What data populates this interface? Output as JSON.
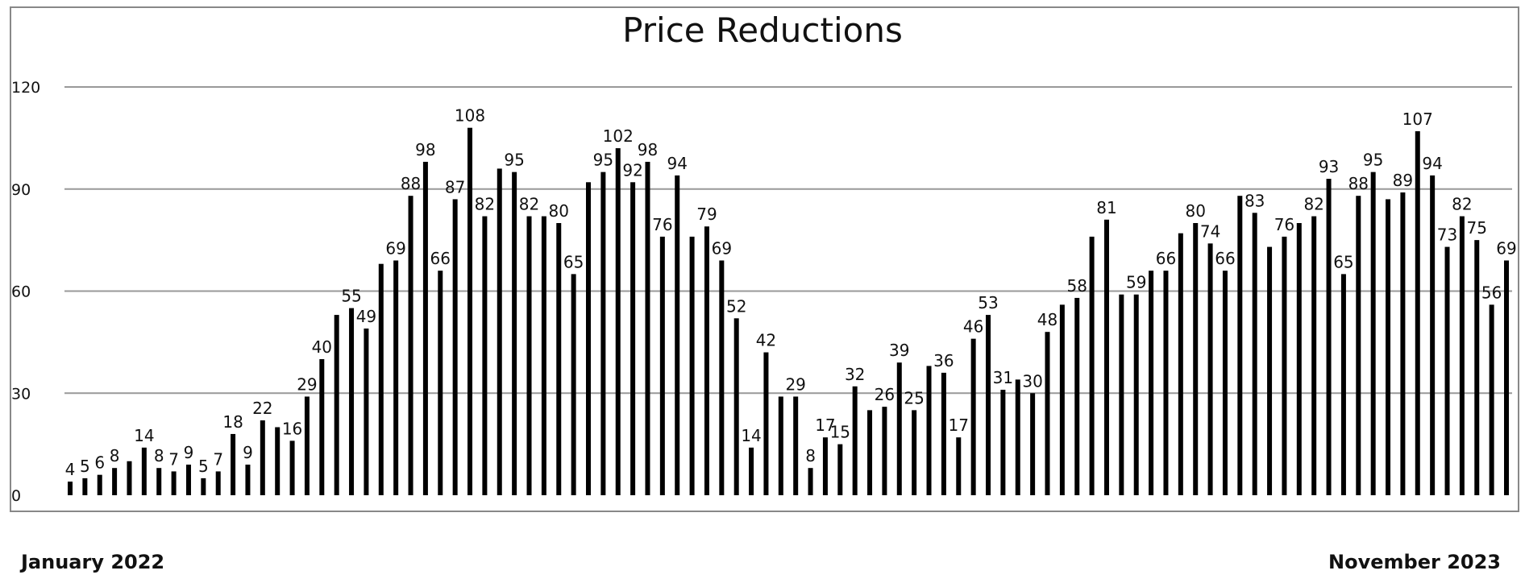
{
  "chart_data": {
    "type": "bar",
    "title": "Price Reductions",
    "ylim": [
      0,
      120
    ],
    "yticks": [
      0,
      30,
      60,
      90,
      120
    ],
    "grid": true,
    "bar_color": "#000000",
    "grid_color": "#999999",
    "start_label": "January 2022",
    "end_label": "November  2023",
    "values": [
      4,
      5,
      6,
      8,
      10,
      14,
      8,
      7,
      9,
      5,
      7,
      18,
      9,
      22,
      20,
      16,
      29,
      40,
      53,
      55,
      49,
      68,
      69,
      88,
      98,
      66,
      87,
      108,
      82,
      96,
      95,
      82,
      82,
      80,
      65,
      92,
      95,
      102,
      92,
      98,
      76,
      94,
      76,
      79,
      69,
      52,
      14,
      42,
      29,
      29,
      8,
      17,
      15,
      32,
      25,
      26,
      39,
      25,
      38,
      36,
      17,
      46,
      53,
      31,
      34,
      30,
      48,
      56,
      58,
      76,
      81,
      59,
      59,
      66,
      66,
      77,
      80,
      74,
      66,
      88,
      83,
      73,
      76,
      80,
      82,
      93,
      65,
      88,
      95,
      87,
      89,
      107,
      94,
      73,
      82,
      75,
      56,
      69
    ],
    "labels": [
      "4",
      "5",
      "6",
      "8",
      "",
      "14",
      "8",
      "7",
      "9",
      "5",
      "7",
      "18",
      "9",
      "22",
      "",
      "16",
      "29",
      "40",
      "",
      "55",
      "49",
      "",
      "69",
      "88",
      "98",
      "66",
      "87",
      "108",
      "82",
      "",
      "95",
      "82",
      "",
      "80",
      "65",
      "",
      "95",
      "102",
      "92",
      "98",
      "76",
      "94",
      "",
      "79",
      "69",
      "52",
      "14",
      "42",
      "",
      "29",
      "8",
      "17",
      "15",
      "32",
      "",
      "26",
      "39",
      "25",
      "",
      "36",
      "17",
      "46",
      "53",
      "31",
      "",
      "30",
      "48",
      "",
      "58",
      "",
      "81",
      "",
      "59",
      "",
      "66",
      "",
      "80",
      "74",
      "66",
      "",
      "83",
      "",
      "76",
      "",
      "82",
      "93",
      "65",
      "88",
      "95",
      "",
      "89",
      "107",
      "94",
      "73",
      "82",
      "75",
      "56",
      "69"
    ]
  }
}
